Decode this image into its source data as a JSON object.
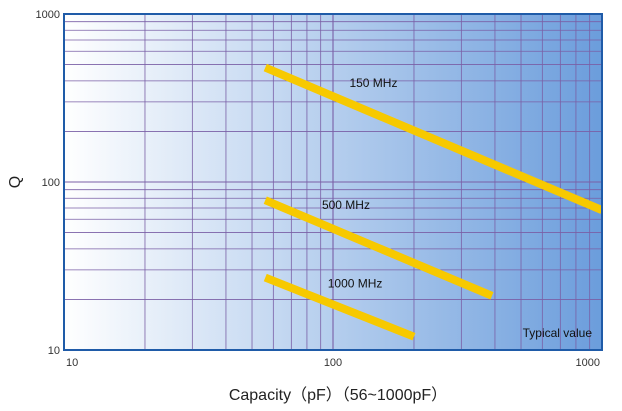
{
  "chart_data": {
    "type": "line",
    "title": "",
    "xlabel": "Capacity（pF）（56~1000pF）",
    "ylabel": "Q",
    "x_scale": "log",
    "y_scale": "log",
    "xlim": [
      10,
      1000
    ],
    "ylim": [
      10,
      1000
    ],
    "x_ticks": [
      "10",
      "100",
      "1000"
    ],
    "y_ticks": [
      "10",
      "100",
      "1000"
    ],
    "grid": true,
    "annotation": "Typical value",
    "series": [
      {
        "name": "150 MHz",
        "x": [
          56,
          1000
        ],
        "y": [
          480,
          68
        ]
      },
      {
        "name": "500 MHz",
        "x": [
          56,
          390
        ],
        "y": [
          78,
          21
        ]
      },
      {
        "name": "1000 MHz",
        "x": [
          56,
          200
        ],
        "y": [
          27,
          12
        ]
      }
    ],
    "colors": {
      "line": "#F7C900",
      "grid": "#7A5FA6",
      "frame": "#1F5BA8",
      "background_start": "#FFFFFF",
      "background_end": "#6B9DDC"
    }
  }
}
